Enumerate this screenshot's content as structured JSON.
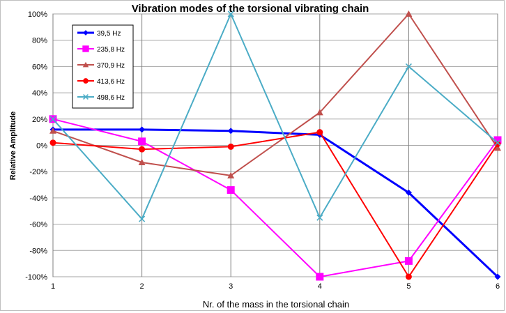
{
  "chart_data": {
    "type": "line",
    "title": "Vibration modes of the torsional vibrating chain",
    "xlabel": "Nr. of the mass in the torsional chain",
    "ylabel": "Relative Amplitude",
    "x": [
      1,
      2,
      3,
      4,
      5,
      6
    ],
    "x_tick_labels": [
      "1",
      "2",
      "3",
      "4",
      "5",
      "6"
    ],
    "ylim": [
      -100,
      100
    ],
    "y_ticks": [
      100,
      80,
      60,
      40,
      20,
      0,
      -20,
      -40,
      -60,
      -80,
      -100
    ],
    "y_tick_labels": [
      "100%",
      "80%",
      "60%",
      "40%",
      "20%",
      "0%",
      "-20%",
      "-40%",
      "-60%",
      "-80%",
      "-100%"
    ],
    "grid": "on",
    "legend_position": "top-left",
    "series": [
      {
        "name": "39,5 Hz",
        "color": "#0000ff",
        "marker": "diamond",
        "values": [
          12,
          12,
          11,
          8,
          -36,
          -100
        ]
      },
      {
        "name": "235,8 Hz",
        "color": "#ff00ff",
        "marker": "square",
        "values": [
          20,
          3,
          -34,
          -100,
          -88,
          4
        ]
      },
      {
        "name": "370,9 Hz",
        "color": "#c0504d",
        "marker": "triangle",
        "values": [
          11,
          -13,
          -23,
          25,
          100,
          -2
        ]
      },
      {
        "name": "413,6 Hz",
        "color": "#ff0000",
        "marker": "circle",
        "values": [
          2,
          -3,
          -1,
          10,
          -100,
          1
        ]
      },
      {
        "name": "498,6 Hz",
        "color": "#4bacc6",
        "marker": "x",
        "values": [
          20,
          -56,
          100,
          -55,
          60,
          2
        ]
      }
    ]
  }
}
